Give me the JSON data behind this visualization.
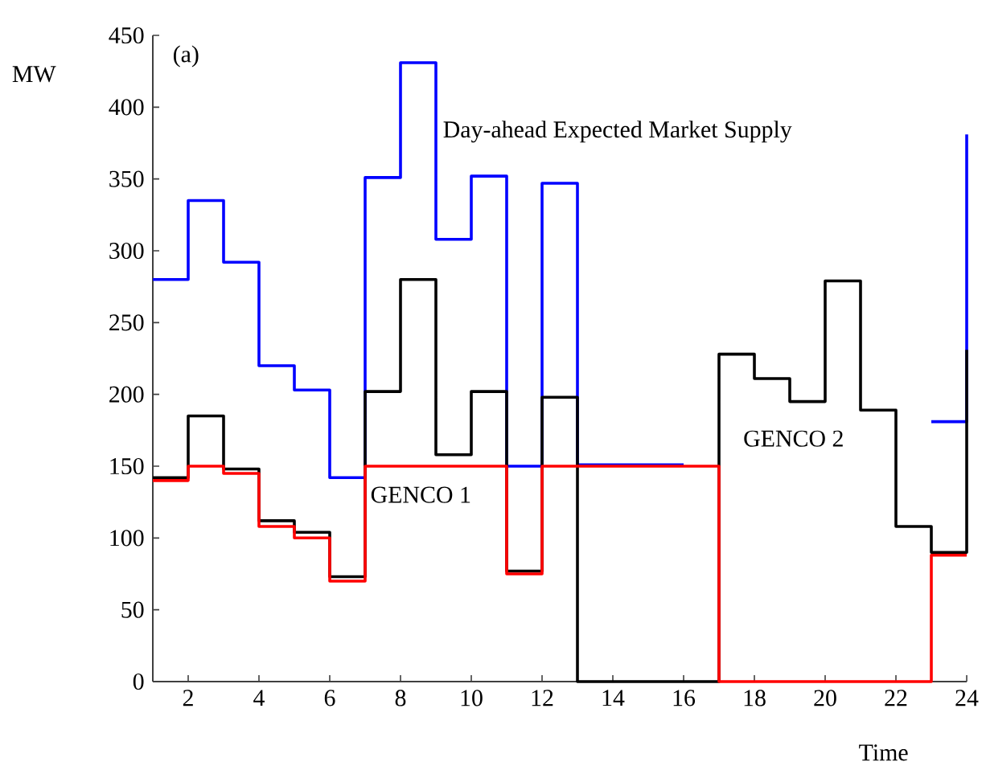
{
  "chart_data": {
    "type": "step",
    "x": [
      1,
      2,
      3,
      4,
      5,
      6,
      7,
      8,
      9,
      10,
      11,
      12,
      13,
      14,
      15,
      16,
      17,
      18,
      19,
      20,
      21,
      22,
      23,
      24
    ],
    "series": [
      {
        "name": "Day-ahead Expected Market Supply",
        "color": "#0000ff",
        "values": [
          280,
          335,
          292,
          220,
          203,
          142,
          351,
          431,
          308,
          352,
          150,
          347,
          151,
          151,
          151,
          151,
          null,
          null,
          null,
          null,
          null,
          null,
          181,
          381
        ]
      },
      {
        "name": "GENCO 2",
        "color": "#000000",
        "values": [
          142,
          185,
          148,
          112,
          104,
          73,
          202,
          280,
          158,
          202,
          77,
          198,
          0,
          0,
          0,
          0,
          228,
          211,
          195,
          279,
          189,
          108,
          90,
          231
        ]
      },
      {
        "name": "GENCO 1",
        "color": "#ff0000",
        "values": [
          140,
          150,
          145,
          108,
          100,
          70,
          150,
          150,
          150,
          150,
          75,
          150,
          150,
          150,
          150,
          150,
          0,
          0,
          0,
          0,
          0,
          0,
          88,
          88
        ]
      }
    ],
    "xlabel": "Time",
    "ylabel": "MW",
    "annotations": [
      "(a)"
    ],
    "xlim": [
      1,
      24
    ],
    "ylim": [
      0,
      450
    ],
    "xticks": [
      2,
      4,
      6,
      8,
      10,
      12,
      14,
      16,
      18,
      20,
      22,
      24
    ],
    "yticks": [
      0,
      50,
      100,
      150,
      200,
      250,
      300,
      350,
      400,
      450
    ]
  }
}
